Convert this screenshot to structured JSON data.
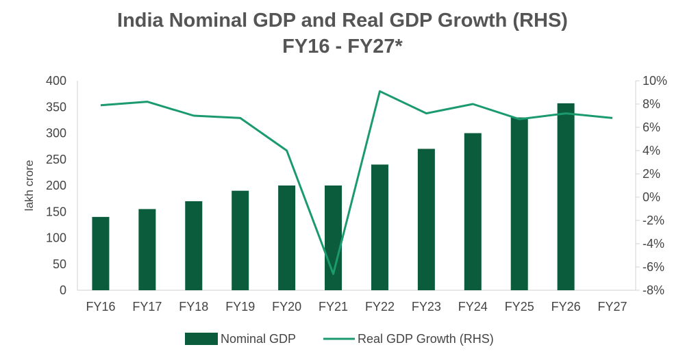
{
  "chart_data": {
    "type": "bar+line",
    "title": "India Nominal GDP and Real GDP Growth (RHS)",
    "subtitle": "FY16 - FY27*",
    "ylabel": "lakh crore",
    "y2label": "",
    "xlabel": "",
    "categories": [
      "FY16",
      "FY17",
      "FY18",
      "FY19",
      "FY20",
      "FY21",
      "FY22",
      "FY23",
      "FY24",
      "FY25",
      "FY26",
      "FY27"
    ],
    "series": [
      {
        "name": "Nominal GDP",
        "type": "bar",
        "axis": "left",
        "color": "#0b5c3c",
        "values": [
          140,
          155,
          170,
          190,
          200,
          200,
          240,
          270,
          300,
          330,
          357,
          null
        ]
      },
      {
        "name": "Real GDP Growth (RHS)",
        "type": "line",
        "axis": "right",
        "color": "#1a9a6e",
        "values": [
          7.9,
          8.2,
          7.0,
          6.8,
          4.0,
          -6.6,
          9.1,
          7.2,
          8.0,
          6.7,
          7.2,
          6.8
        ]
      }
    ],
    "ylim": [
      0,
      400
    ],
    "y_ticks": [
      0,
      50,
      100,
      150,
      200,
      250,
      300,
      350,
      400
    ],
    "y2lim": [
      -8,
      10
    ],
    "y2_ticks": [
      -8,
      -6,
      -4,
      -2,
      0,
      2,
      4,
      6,
      8,
      10
    ],
    "y2_tick_labels": [
      "-8%",
      "-6%",
      "-4%",
      "-2%",
      "0%",
      "2%",
      "4%",
      "6%",
      "8%",
      "10%"
    ],
    "grid": false,
    "legend_position": "bottom"
  }
}
